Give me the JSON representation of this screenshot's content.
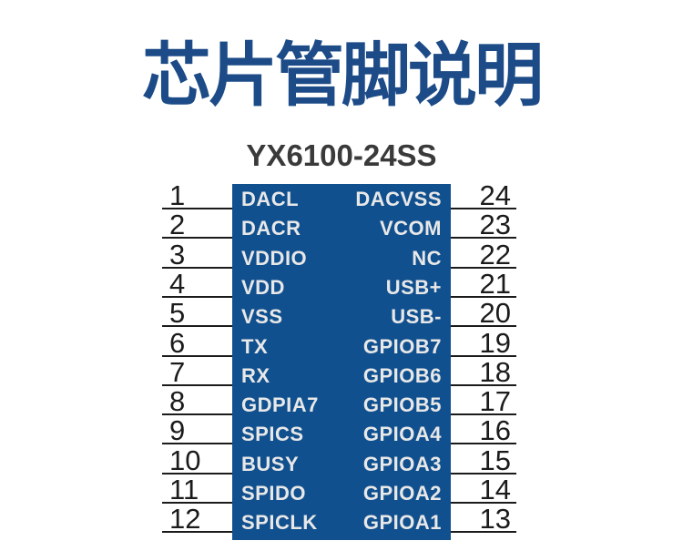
{
  "header": {
    "title": "芯片管脚说明",
    "chip_model": "YX6100-24SS"
  },
  "colors": {
    "title_blue": "#1c4b87",
    "chip_blue": "#11508e",
    "pin_label": "#e8e8e8",
    "pin_number": "#1b1b1b",
    "subtitle": "#3a3a3a",
    "line_color": "#1b1b1b"
  },
  "chip": {
    "pin_count": 24,
    "left_pins": [
      {
        "number": "1",
        "label": "DACL"
      },
      {
        "number": "2",
        "label": "DACR"
      },
      {
        "number": "3",
        "label": "VDDIO"
      },
      {
        "number": "4",
        "label": "VDD"
      },
      {
        "number": "5",
        "label": "VSS"
      },
      {
        "number": "6",
        "label": "TX"
      },
      {
        "number": "7",
        "label": "RX"
      },
      {
        "number": "8",
        "label": "GDPIA7"
      },
      {
        "number": "9",
        "label": "SPICS"
      },
      {
        "number": "10",
        "label": "BUSY"
      },
      {
        "number": "11",
        "label": "SPIDO"
      },
      {
        "number": "12",
        "label": "SPICLK"
      }
    ],
    "right_pins": [
      {
        "number": "24",
        "label": "DACVSS"
      },
      {
        "number": "23",
        "label": "VCOM"
      },
      {
        "number": "22",
        "label": "NC"
      },
      {
        "number": "21",
        "label": "USB+"
      },
      {
        "number": "20",
        "label": "USB-"
      },
      {
        "number": "19",
        "label": "GPIOB7"
      },
      {
        "number": "18",
        "label": "GPIOB6"
      },
      {
        "number": "17",
        "label": "GPIOB5"
      },
      {
        "number": "16",
        "label": "GPIOA4"
      },
      {
        "number": "15",
        "label": "GPIOA3"
      },
      {
        "number": "14",
        "label": "GPIOA2"
      },
      {
        "number": "13",
        "label": "GPIOA1"
      }
    ]
  }
}
